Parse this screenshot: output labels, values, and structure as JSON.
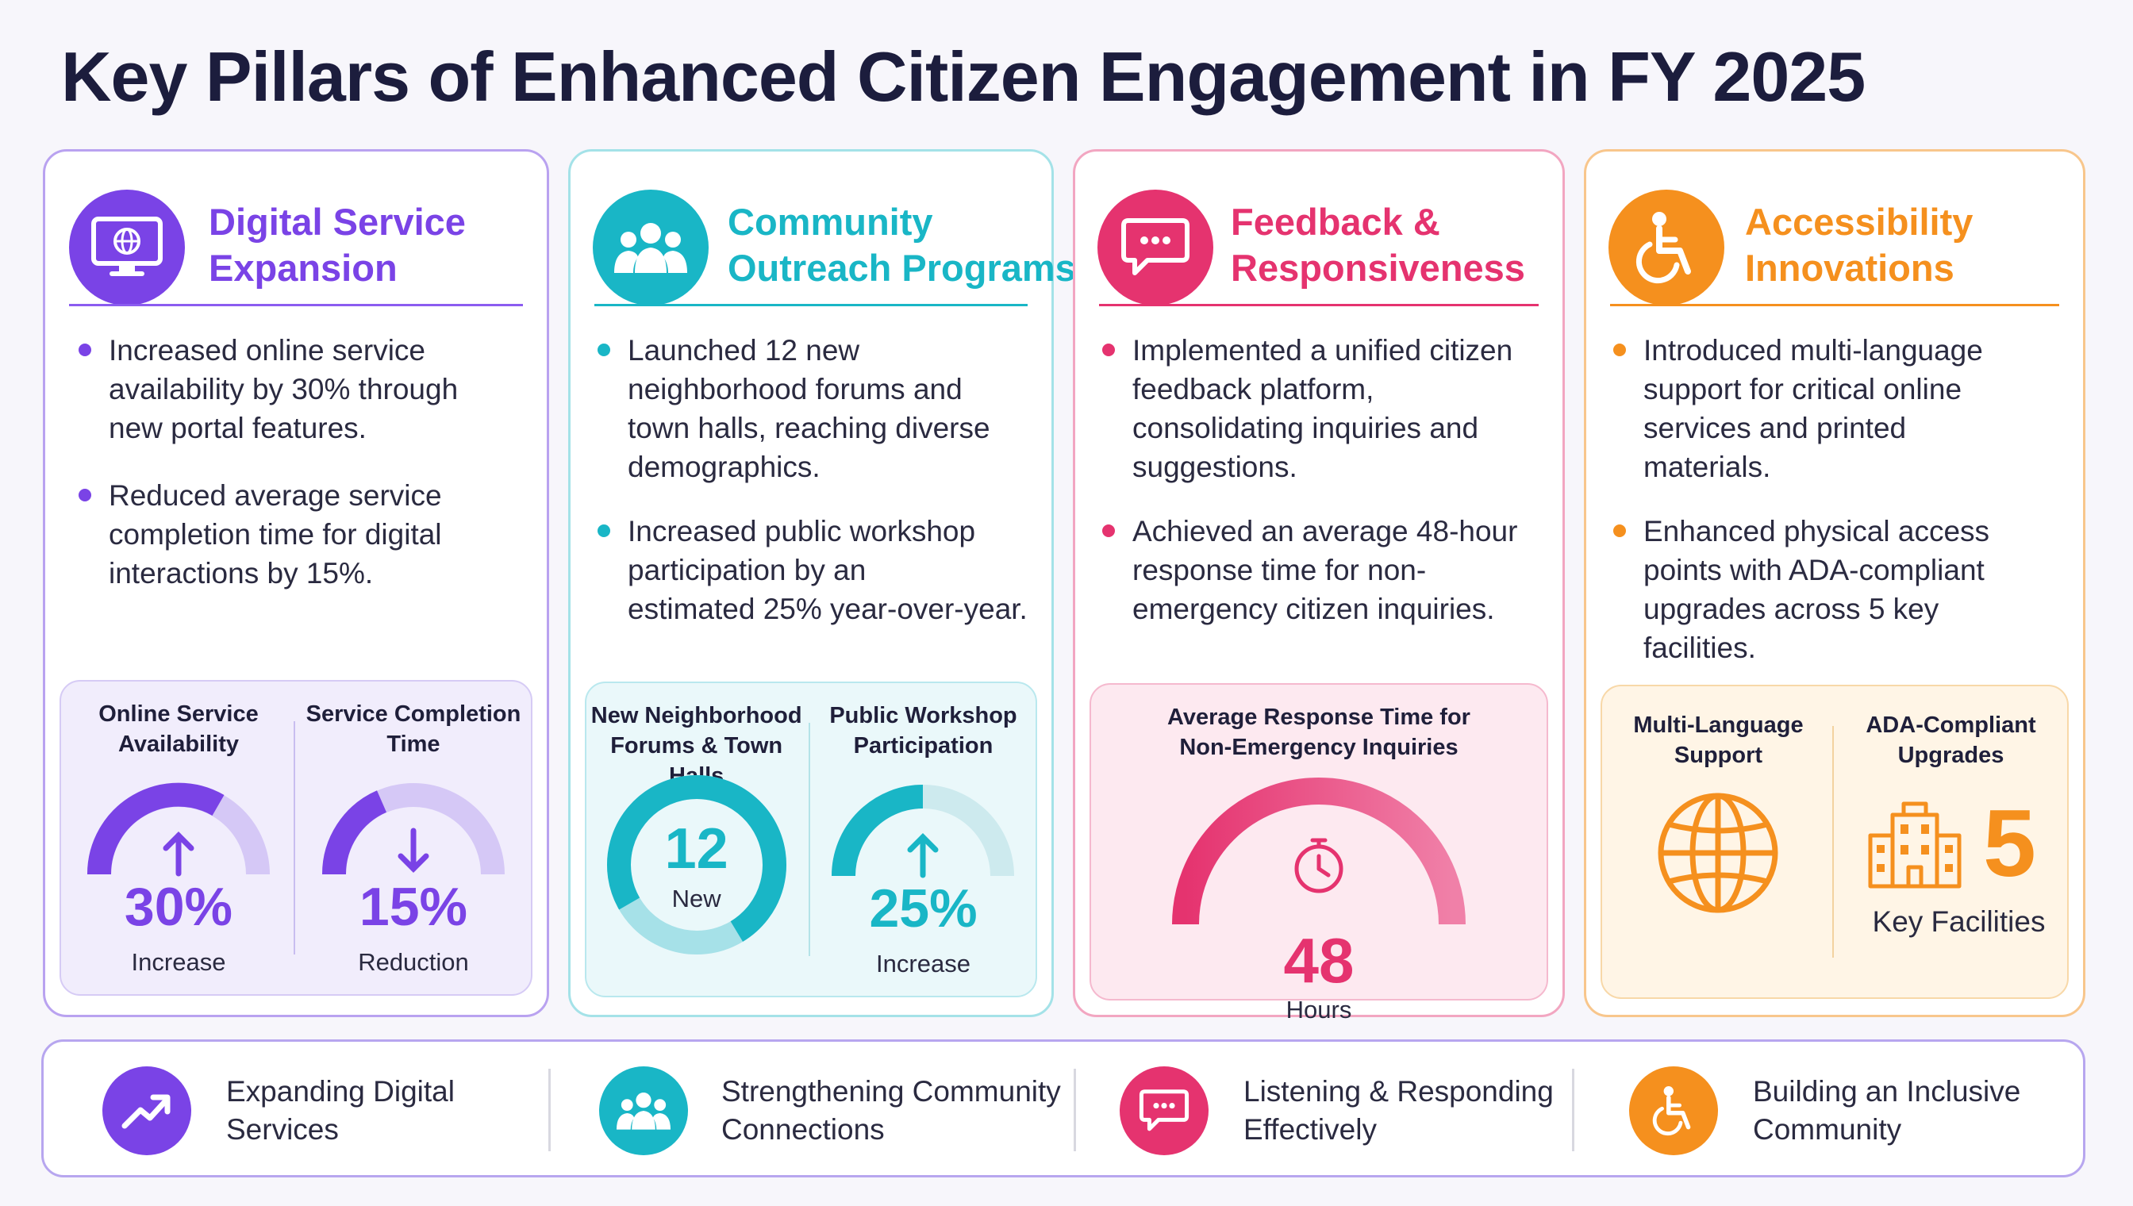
{
  "title": "Key Pillars of Enhanced Citizen Engagement in FY 2025",
  "colors": {
    "digital": "#7a43e6",
    "community": "#19b6c6",
    "feedback": "#e5336f",
    "access": "#f5901e"
  },
  "cards": [
    {
      "title_line1": "Digital Service",
      "title_line2": "Expansion",
      "icon": "monitor-globe-icon",
      "bullets": [
        [
          "Increased online service",
          "availability by 30% through",
          "new portal features."
        ],
        [
          "Reduced average service",
          "completion time for digital",
          "interactions by 15%."
        ]
      ],
      "metrics": [
        {
          "label_line1": "Online Service",
          "label_line2": "Availability",
          "value": "30%",
          "sub": "Increase",
          "direction": "up",
          "gauge_fraction": 0.7
        },
        {
          "label_line1": "Service Completion",
          "label_line2": "Time",
          "value": "15%",
          "sub": "Reduction",
          "direction": "down",
          "gauge_fraction": 0.35
        }
      ]
    },
    {
      "title_line1": "Community",
      "title_line2": "Outreach Programs",
      "icon": "people-group-icon",
      "bullets": [
        [
          "Launched 12 new",
          "neighborhood forums and",
          "town halls, reaching diverse",
          "demographics."
        ],
        [
          "Increased public workshop",
          "participation by an",
          "estimated 25% year-over-year."
        ]
      ],
      "metrics": [
        {
          "label_line1": "New Neighborhood",
          "label_line2": "Forums & Town Halls",
          "value": "12",
          "sub": "New",
          "type": "donut"
        },
        {
          "label_line1": "Public Workshop",
          "label_line2": "Participation",
          "value": "25%",
          "sub": "Increase",
          "direction": "up",
          "gauge_fraction": 0.5
        }
      ]
    },
    {
      "title_line1": "Feedback &",
      "title_line2": "Responsiveness",
      "icon": "chat-bubble-icon",
      "bullets": [
        [
          "Implemented a unified citizen",
          "feedback platform,",
          "consolidating inquiries and",
          "suggestions."
        ],
        [
          "Achieved an average 48-hour",
          "response time for non-",
          "emergency citizen inquiries."
        ]
      ],
      "metrics": [
        {
          "label_line1": "Average Response Time for",
          "label_line2": "Non-Emergency Inquiries",
          "value": "48",
          "sub": "Hours",
          "type": "gauge-timer"
        }
      ]
    },
    {
      "title_line1": "Accessibility",
      "title_line2": "Innovations",
      "icon": "wheelchair-icon",
      "bullets": [
        [
          "Introduced multi-language",
          "support for critical online",
          "services and printed",
          "materials."
        ],
        [
          "Enhanced physical access",
          "points with ADA-compliant",
          "upgrades across 5 key",
          "facilities."
        ]
      ],
      "metrics": [
        {
          "label_line1": "Multi-Language",
          "label_line2": "Support",
          "type": "globe"
        },
        {
          "label_line1": "ADA-Compliant",
          "label_line2": "Upgrades",
          "value": "5",
          "sub": "Key Facilities",
          "type": "building"
        }
      ]
    }
  ],
  "footer": [
    {
      "line1": "Expanding Digital",
      "line2": "Services",
      "icon": "trend-up-icon"
    },
    {
      "line1": "Strengthening Community",
      "line2": "Connections",
      "icon": "people-group-icon"
    },
    {
      "line1": "Listening & Responding",
      "line2": "Effectively",
      "icon": "chat-bubble-icon"
    },
    {
      "line1": "Building an Inclusive",
      "line2": "Community",
      "icon": "wheelchair-icon"
    }
  ]
}
